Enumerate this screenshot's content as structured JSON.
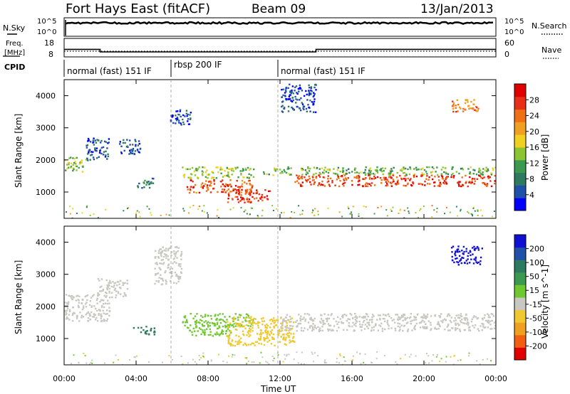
{
  "header": {
    "station": "Fort Hays East (fitACF)",
    "beam": "Beam 09",
    "date": "13/Jan/2013"
  },
  "panels": {
    "nsky_label": "N.Sky",
    "nsearch_label": "N.Search",
    "freq_label_line1": "Freq.",
    "freq_label_line2": "[MHz]",
    "nave_label": "Nave",
    "cpid_label": "CPID",
    "nsky_ticks": [
      "10^5",
      "10^0"
    ],
    "nsearch_ticks": [
      "10^5",
      "10^0"
    ],
    "freq_ticks": [
      "18",
      "8"
    ],
    "nave_ticks": [
      "60",
      "0"
    ]
  },
  "cpid_segments": [
    {
      "label": "normal (fast) 151 IF",
      "start_hour": 0,
      "end_hour": 6
    },
    {
      "label": "rbsp 200 IF",
      "start_hour": 6,
      "end_hour": 12
    },
    {
      "label": "normal (fast) 151 IF",
      "start_hour": 12,
      "end_hour": 24
    }
  ],
  "power_colorbar": {
    "title": "Power [dB]",
    "ticks": [
      "28",
      "24",
      "20",
      "16",
      "12",
      "8",
      "4"
    ],
    "colors": [
      "#0000ff",
      "#2050a8",
      "#2e7a60",
      "#3c9a50",
      "#8cc432",
      "#f0d020",
      "#f0a020",
      "#f07018",
      "#e83018",
      "#e00000"
    ]
  },
  "velocity_colorbar": {
    "title": "Velocity [m s^-1]",
    "ticks": [
      "200",
      "100",
      "50",
      "15",
      "-15",
      "-50",
      "-100",
      "-200"
    ],
    "colors": [
      "#1010d0",
      "#2050a8",
      "#2e7a60",
      "#3c9a50",
      "#70c830",
      "#c8c8c0",
      "#f0c830",
      "#f0a020",
      "#f06010",
      "#e00000"
    ]
  },
  "chart_data": {
    "type": "heatmap",
    "x_label": "Time UT",
    "x_ticks": [
      "00:00",
      "04:00",
      "08:00",
      "12:00",
      "16:00",
      "20:00",
      "00:00"
    ],
    "xlim_hours": [
      0,
      24
    ],
    "y_label": "Slant Range [km]",
    "y_ticks": [
      "4000",
      "3000",
      "2000",
      "1000"
    ],
    "ylim_km": [
      180,
      4500
    ],
    "frequency_mhz": [
      {
        "start_hour": 0,
        "end_hour": 2,
        "value": 12
      },
      {
        "start_hour": 2,
        "end_hour": 14,
        "value": 10.5
      },
      {
        "start_hour": 14,
        "end_hour": 24,
        "value": 12
      }
    ],
    "power_bands": [
      {
        "t0": 0.0,
        "t1": 1.2,
        "r0": 1650,
        "r1": 2100,
        "v": 14
      },
      {
        "t0": 1.2,
        "t1": 2.5,
        "r0": 2000,
        "r1": 2700,
        "v": 5
      },
      {
        "t0": 3.0,
        "t1": 4.2,
        "r0": 2200,
        "r1": 2700,
        "v": 5
      },
      {
        "t0": 4.0,
        "t1": 5.0,
        "r0": 1150,
        "r1": 1450,
        "v": 7
      },
      {
        "t0": 5.8,
        "t1": 7.0,
        "r0": 3100,
        "r1": 3600,
        "v": 4
      },
      {
        "t0": 6.5,
        "t1": 10.5,
        "r0": 1450,
        "r1": 1800,
        "v": 14
      },
      {
        "t0": 6.8,
        "t1": 10.5,
        "r0": 1000,
        "r1": 1400,
        "v": 24
      },
      {
        "t0": 9.0,
        "t1": 11.5,
        "r0": 700,
        "r1": 1100,
        "v": 26
      },
      {
        "t0": 11.0,
        "t1": 24.0,
        "r0": 1550,
        "r1": 1800,
        "v": 12
      },
      {
        "t0": 12.8,
        "t1": 24.0,
        "r0": 1200,
        "r1": 1550,
        "v": 25
      },
      {
        "t0": 21.5,
        "t1": 23.0,
        "r0": 3500,
        "r1": 3900,
        "v": 22
      },
      {
        "t0": 12.0,
        "t1": 14.0,
        "r0": 3500,
        "r1": 4400,
        "v": 4
      }
    ],
    "velocity_bands": [
      {
        "t0": 0.0,
        "t1": 2.5,
        "r0": 1550,
        "r1": 2400,
        "v": 0
      },
      {
        "t0": 1.8,
        "t1": 3.5,
        "r0": 2300,
        "r1": 2900,
        "v": 0
      },
      {
        "t0": 3.8,
        "t1": 5.0,
        "r0": 1150,
        "r1": 1400,
        "v": 80
      },
      {
        "t0": 5.0,
        "t1": 6.5,
        "r0": 2700,
        "r1": 3900,
        "v": 0
      },
      {
        "t0": 6.5,
        "t1": 10.5,
        "r0": 1400,
        "r1": 1800,
        "v": 30
      },
      {
        "t0": 6.8,
        "t1": 9.5,
        "r0": 1100,
        "r1": 1400,
        "v": 30
      },
      {
        "t0": 9.0,
        "t1": 12.8,
        "r0": 800,
        "r1": 1700,
        "v": -40
      },
      {
        "t0": 12.0,
        "t1": 24.0,
        "r0": 1250,
        "r1": 1800,
        "v": 0
      },
      {
        "t0": 21.5,
        "t1": 23.2,
        "r0": 3300,
        "r1": 3900,
        "v": 220
      }
    ]
  }
}
